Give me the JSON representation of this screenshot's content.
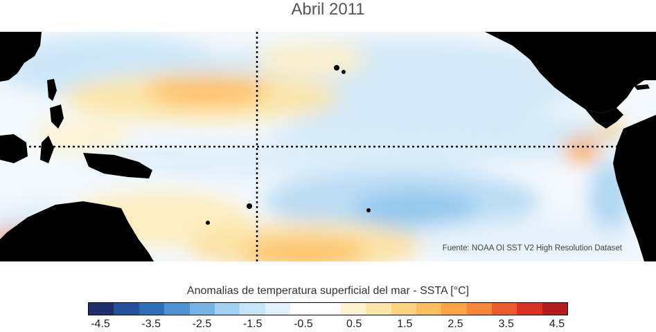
{
  "title": "Abril 2011",
  "source_note": "Fuente: NOAA OI SST V2 High Resolution Dataset",
  "colorbar": {
    "title": "Anomalias de temperatura superficial del mar - SSTA  [°C]",
    "tick_labels": [
      "-4.5",
      "-3.5",
      "-2.5",
      "-1.5",
      "-0.5",
      "0.5",
      "1.5",
      "2.5",
      "3.5",
      "4.5"
    ],
    "colors": [
      "#1d2f6b",
      "#24519b",
      "#2f6fba",
      "#4f93d2",
      "#76b4e6",
      "#a3d3f4",
      "#c5e5f8",
      "#e1f2fb",
      "#ffffff",
      "#ffffff",
      "#fdf3cf",
      "#fde7a8",
      "#fdd480",
      "#fcbf5f",
      "#fba445",
      "#f7853a",
      "#ed5a2c",
      "#d93222",
      "#b51c1d"
    ]
  }
}
